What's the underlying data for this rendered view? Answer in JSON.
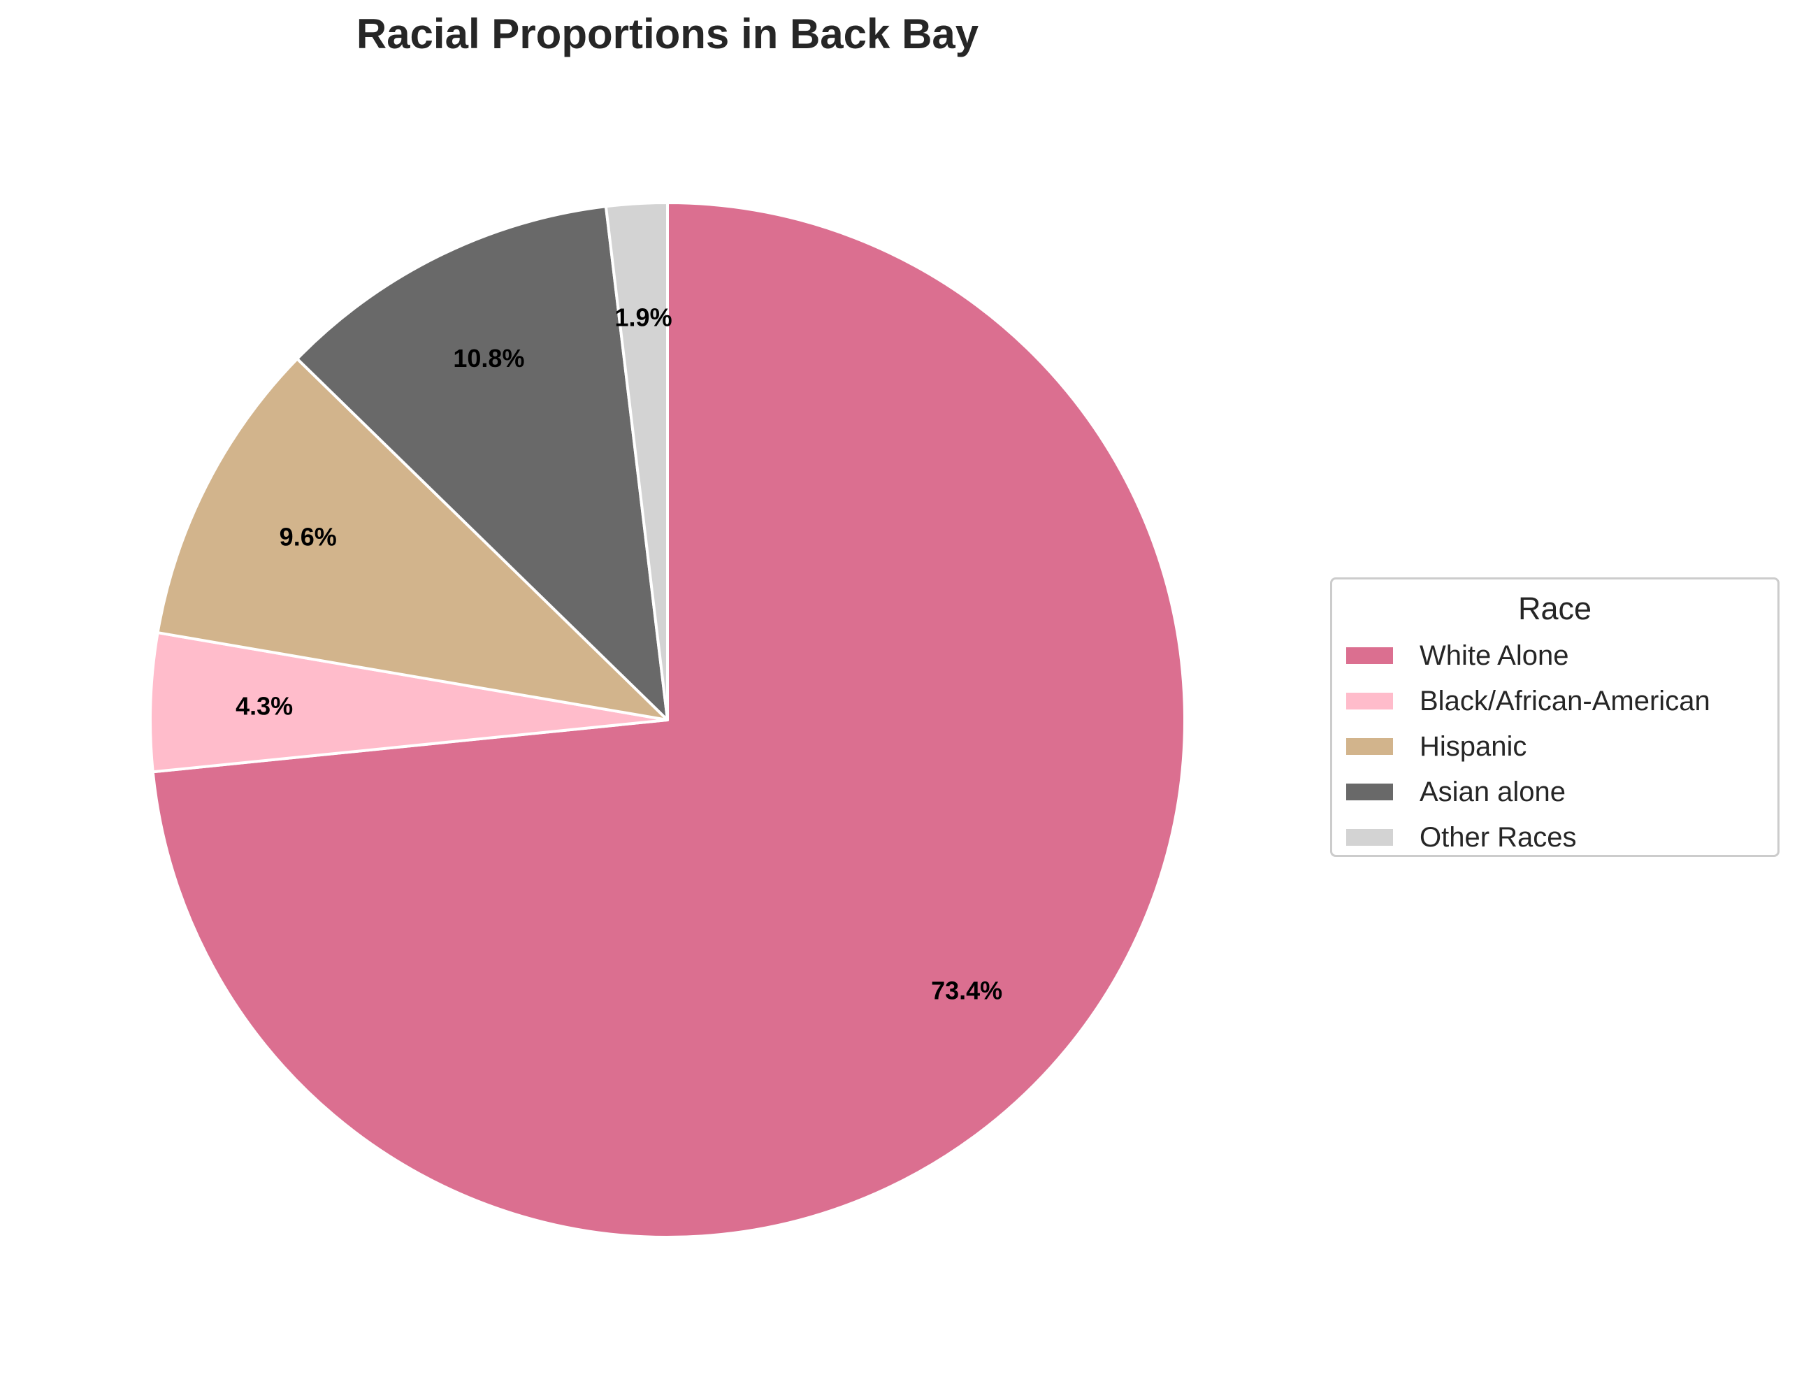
{
  "chart_data": {
    "type": "pie",
    "title": "Racial Proportions in Back Bay",
    "start_angle_deg": 90,
    "direction": "clockwise",
    "slices": [
      {
        "label": "White Alone",
        "value": 73.4,
        "display": "73.4%",
        "color": "#db6f90"
      },
      {
        "label": "Black/African-American",
        "value": 4.3,
        "display": "4.3%",
        "color": "#ffbccb"
      },
      {
        "label": "Hispanic",
        "value": 9.6,
        "display": "9.6%",
        "color": "#d2b48c"
      },
      {
        "label": "Asian alone",
        "value": 10.8,
        "display": "10.8%",
        "color": "#696969"
      },
      {
        "label": "Other Races",
        "value": 1.9,
        "display": "1.9%",
        "color": "#d3d3d3"
      }
    ],
    "legend": {
      "title": "Race",
      "placement": "center-right"
    }
  }
}
